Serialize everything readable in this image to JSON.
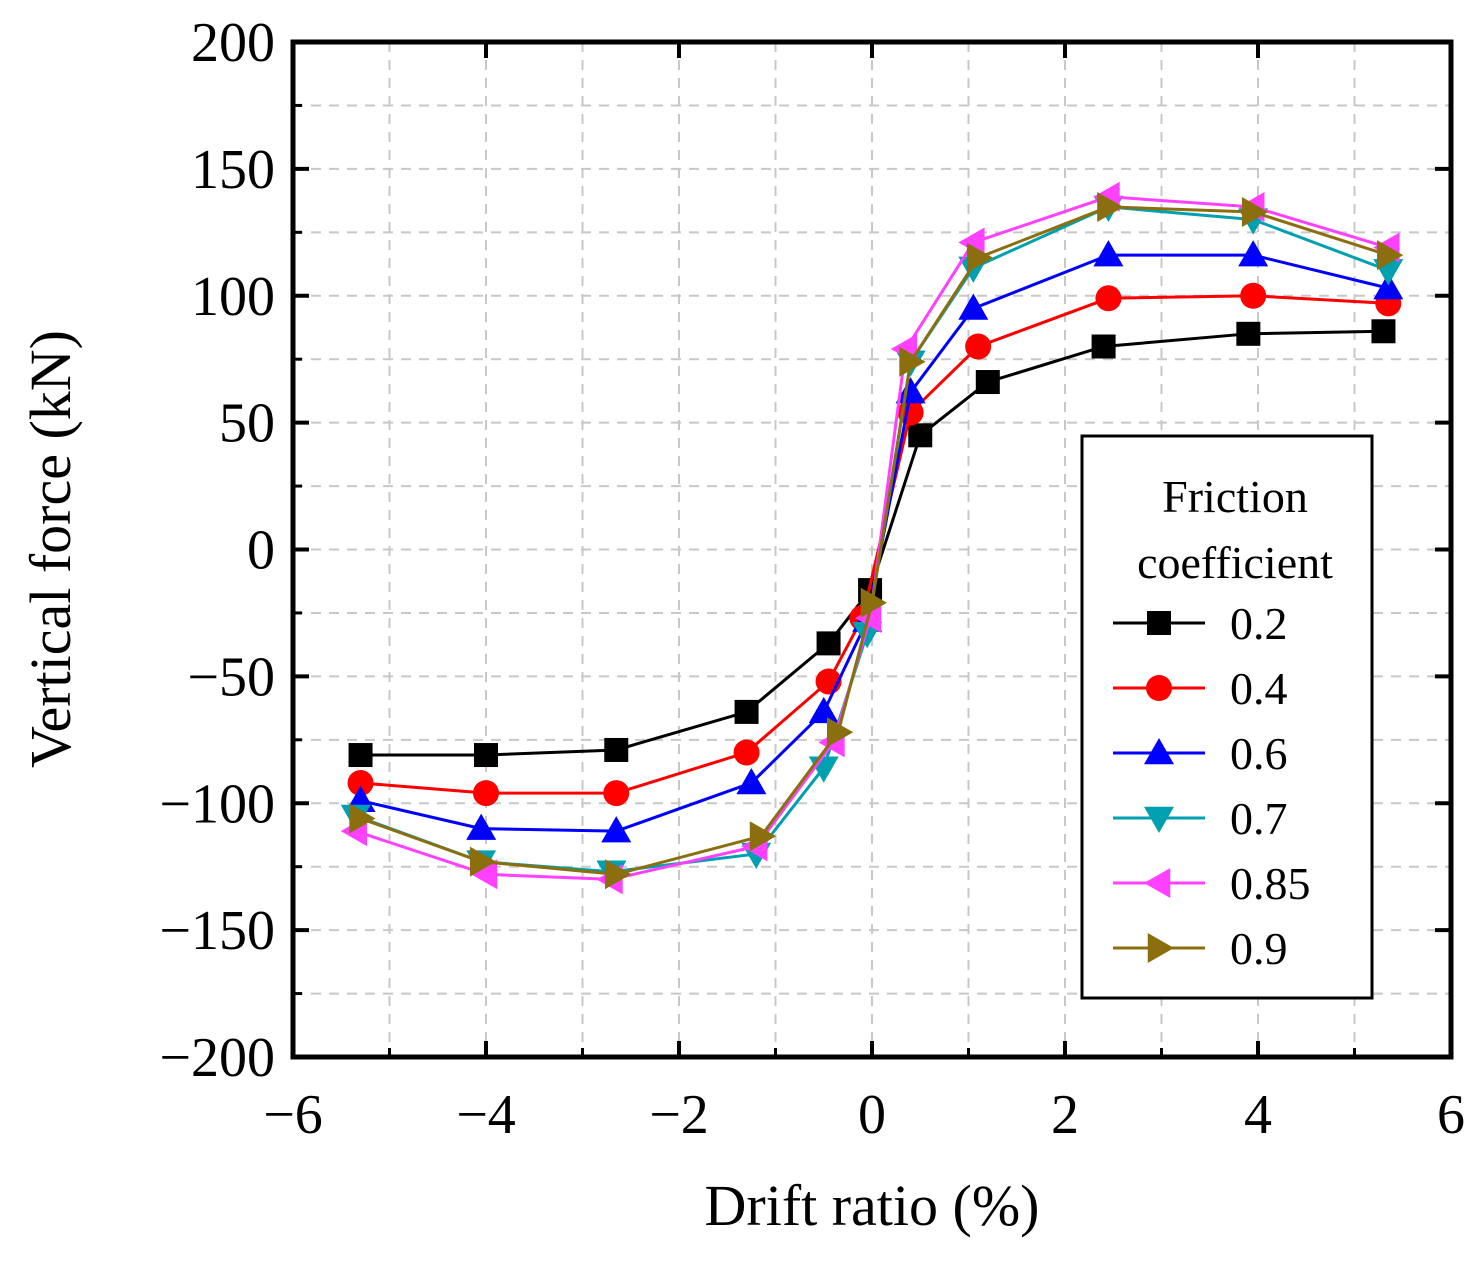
{
  "chart_data": {
    "type": "line",
    "title": "",
    "xlabel": "Drift ratio (%)",
    "ylabel": "Vertical force (kN)",
    "xlim": [
      -6,
      6
    ],
    "ylim": [
      -200,
      200
    ],
    "xticks": [
      -6,
      -4,
      -2,
      0,
      2,
      4,
      6
    ],
    "xtick_labels": [
      "−6",
      "−4",
      "−2",
      "0",
      "2",
      "4",
      "6"
    ],
    "yticks": [
      -200,
      -150,
      -100,
      -50,
      0,
      50,
      100,
      150,
      200
    ],
    "ytick_labels": [
      "−200",
      "−150",
      "−100",
      "−50",
      "0",
      "50",
      "100",
      "150",
      "200"
    ],
    "grid": true,
    "legend_position": "right",
    "legend_title_line1": "Friction",
    "legend_title_line2": "coefficient",
    "series": [
      {
        "name": "0.2",
        "color": "#000000",
        "marker": "square",
        "x": [
          -5.3,
          -4.0,
          -2.65,
          -1.3,
          -0.45,
          -0.02,
          0.5,
          1.2,
          2.4,
          3.9,
          5.3
        ],
        "y": [
          -81,
          -81,
          -79,
          -64,
          -37,
          -16,
          45,
          66,
          80,
          85,
          86
        ]
      },
      {
        "name": "0.4",
        "color": "#ff0000",
        "marker": "circle",
        "x": [
          -5.3,
          -4.0,
          -2.65,
          -1.3,
          -0.45,
          -0.1,
          0.4,
          1.1,
          2.45,
          3.95,
          5.35
        ],
        "y": [
          -92,
          -96,
          -96,
          -80,
          -52,
          -27,
          54,
          80,
          99,
          100,
          97
        ]
      },
      {
        "name": "0.6",
        "color": "#0000ff",
        "marker": "triangle-up",
        "x": [
          -5.3,
          -4.05,
          -2.65,
          -1.25,
          -0.5,
          -0.05,
          0.4,
          1.05,
          2.45,
          3.95,
          5.35
        ],
        "y": [
          -99,
          -110,
          -111,
          -92,
          -64,
          -28,
          62,
          95,
          116,
          116,
          103
        ]
      },
      {
        "name": "0.7",
        "color": "#00a0b0",
        "marker": "triangle-down",
        "x": [
          -5.35,
          -4.05,
          -2.7,
          -1.2,
          -0.5,
          -0.05,
          0.4,
          1.05,
          2.45,
          3.95,
          5.35
        ],
        "y": [
          -105,
          -123,
          -127,
          -120,
          -86,
          -33,
          74,
          111,
          135,
          130,
          110
        ]
      },
      {
        "name": "0.85",
        "color": "#ff40ff",
        "marker": "triangle-left",
        "x": [
          -5.35,
          -4.0,
          -2.7,
          -1.2,
          -0.4,
          -0.02,
          0.35,
          1.05,
          2.45,
          3.95,
          5.35
        ],
        "y": [
          -111,
          -128,
          -130,
          -117,
          -76,
          -27,
          79,
          121,
          139,
          135,
          119
        ]
      },
      {
        "name": "0.9",
        "color": "#8b6f0e",
        "marker": "triangle-right",
        "x": [
          -5.3,
          -4.05,
          -2.65,
          -1.15,
          -0.35,
          0.0,
          0.4,
          1.1,
          2.45,
          3.95,
          5.35
        ],
        "y": [
          -106,
          -123,
          -128,
          -113,
          -72,
          -21,
          74,
          115,
          135,
          133,
          116
        ]
      }
    ]
  }
}
